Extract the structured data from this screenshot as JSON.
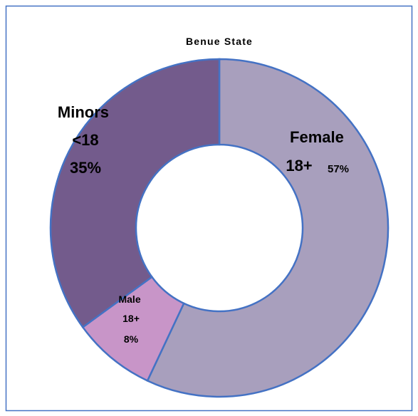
{
  "chart_data": {
    "type": "donut",
    "title": "Benue State",
    "categories": [
      "Female 18+",
      "Male 18+",
      "Minors <18"
    ],
    "values": [
      57,
      8,
      35
    ],
    "value_labels": [
      "57%",
      "8%",
      "35%"
    ],
    "colors": [
      "#a89fbd",
      "#c895c8",
      "#735b8c"
    ]
  }
}
